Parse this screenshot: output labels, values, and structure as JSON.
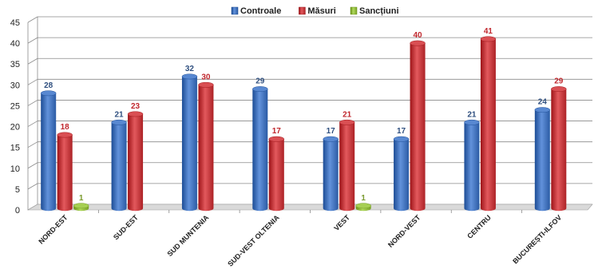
{
  "chart_data": {
    "type": "bar",
    "title": "",
    "xlabel": "",
    "ylabel": "",
    "ylim": [
      0,
      45
    ],
    "yticks": [
      0,
      5,
      10,
      15,
      20,
      25,
      30,
      35,
      40,
      45
    ],
    "grid": true,
    "legend_position": "top-center",
    "categories": [
      "NORD-EST",
      "SUD-EST",
      "SUD MUNTENIA",
      "SUD-VEST OLTENIA",
      "VEST",
      "NORD-VEST",
      "CENTRU",
      "BUCUREȘTI-ILFOV"
    ],
    "series": [
      {
        "name": "Controale",
        "color": "#3f6fb8",
        "label_color": "#2f4f7f",
        "values": [
          28,
          21,
          32,
          29,
          17,
          17,
          21,
          24
        ]
      },
      {
        "name": "Măsuri",
        "color": "#c0363a",
        "label_color": "#c0272d",
        "values": [
          18,
          23,
          30,
          17,
          21,
          40,
          41,
          29
        ]
      },
      {
        "name": "Sancțiuni",
        "color": "#8db63a",
        "label_color": "#7a9a2e",
        "values": [
          1,
          null,
          null,
          null,
          1,
          null,
          null,
          null
        ]
      }
    ]
  }
}
